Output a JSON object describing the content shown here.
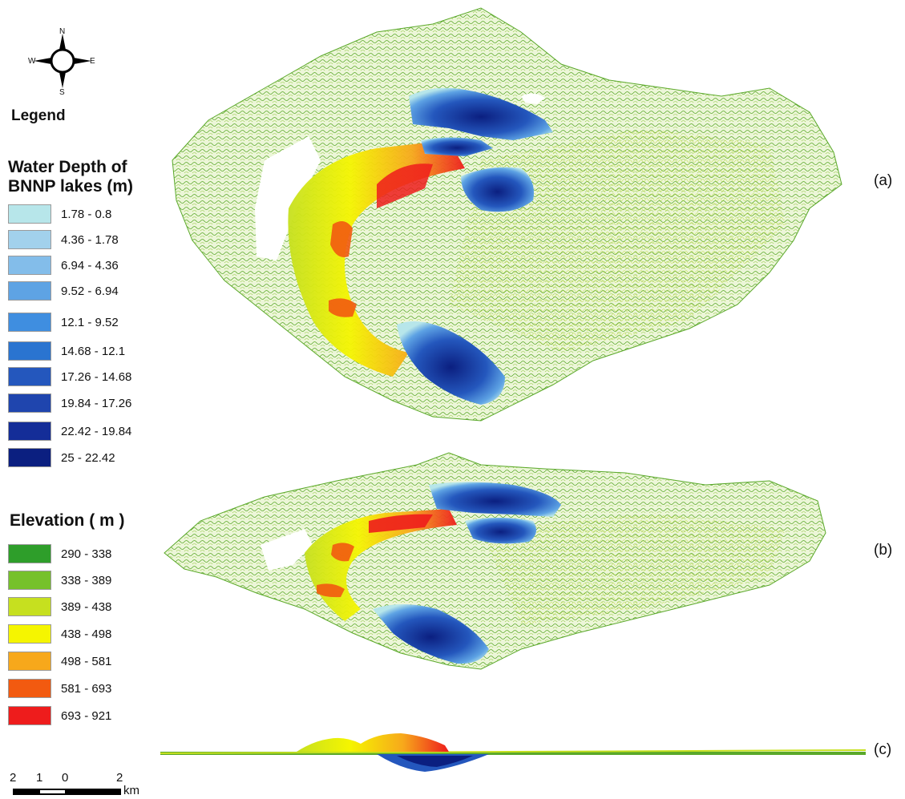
{
  "compass": {
    "n": "N",
    "s": "S",
    "e": "E",
    "w": "W"
  },
  "legend_title": "Legend",
  "water_depth": {
    "title_line1": "Water Depth of",
    "title_line2": "BNNP lakes (m)",
    "classes": [
      {
        "label": "1.78 - 0.8",
        "color": "#b7e6ea"
      },
      {
        "label": "4.36 - 1.78",
        "color": "#a2d1ec"
      },
      {
        "label": "6.94 - 4.36",
        "color": "#83bdea"
      },
      {
        "label": "9.52 - 6.94",
        "color": "#5ea3e4"
      },
      {
        "label": "12.1 - 9.52",
        "color": "#3f8ee0"
      },
      {
        "label": "14.68 - 12.1",
        "color": "#2a74d0"
      },
      {
        "label": "17.26 - 14.68",
        "color": "#2457bd"
      },
      {
        "label": "19.84 - 17.26",
        "color": "#1f45ae"
      },
      {
        "label": "22.42 - 19.84",
        "color": "#142d98"
      },
      {
        "label": "25 - 22.42",
        "color": "#0b1f80"
      }
    ]
  },
  "elevation": {
    "title": "Elevation ( m )",
    "classes": [
      {
        "label": "290 - 338",
        "color": "#2e9e2a"
      },
      {
        "label": "338 - 389",
        "color": "#76c12b"
      },
      {
        "label": "389 - 438",
        "color": "#c6e01f"
      },
      {
        "label": "438 - 498",
        "color": "#f5f500"
      },
      {
        "label": "498 - 581",
        "color": "#f7a81b"
      },
      {
        "label": "581 - 693",
        "color": "#f25a10"
      },
      {
        "label": "693 - 921",
        "color": "#ee1c1c"
      }
    ]
  },
  "panels": {
    "a": "(a)",
    "b": "(b)",
    "c": "(c)"
  },
  "scale_bar": {
    "ticks": [
      "2",
      "1",
      "0",
      "2"
    ],
    "unit": "km"
  }
}
